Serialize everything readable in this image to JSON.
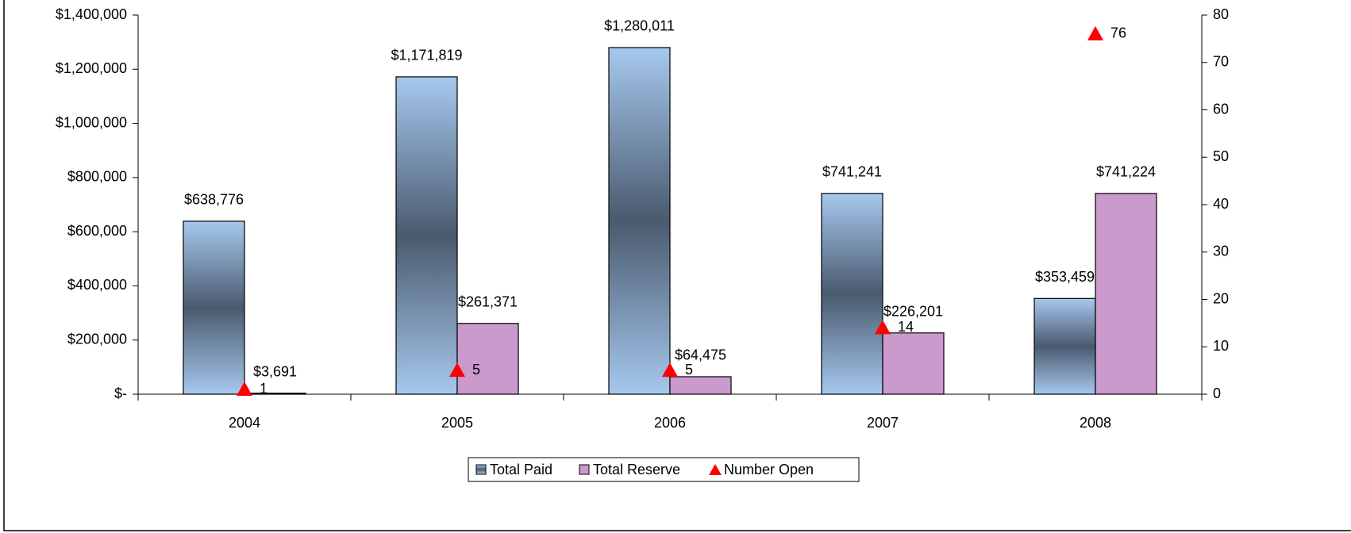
{
  "chart_data": {
    "type": "bar",
    "categories": [
      "2004",
      "2005",
      "2006",
      "2007",
      "2008"
    ],
    "series": [
      {
        "name": "Total Paid",
        "color": "#a6c8ee",
        "values": [
          638776,
          1171819,
          1280011,
          741241,
          353459
        ],
        "value_labels": [
          "$638,776",
          "$1,171,819",
          "$1,280,011",
          "$741,241",
          "$353,459"
        ]
      },
      {
        "name": "Total Reserve",
        "color": "#cc99cc",
        "values": [
          3691,
          261371,
          64475,
          226201,
          741224
        ],
        "value_labels": [
          "$3,691",
          "$261,371",
          "$64,475",
          "$226,201",
          "$741,224"
        ]
      },
      {
        "name": "Number Open",
        "color": "#ff0000",
        "type": "scatter",
        "axis": "y2",
        "values": [
          1,
          5,
          5,
          14,
          76
        ]
      }
    ],
    "ylim": [
      0,
      1400000
    ],
    "yticks": [
      {
        "value": 0,
        "label": "$-"
      },
      {
        "value": 200000,
        "label": "$200,000"
      },
      {
        "value": 400000,
        "label": "$400,000"
      },
      {
        "value": 600000,
        "label": "$600,000"
      },
      {
        "value": 800000,
        "label": "$800,000"
      },
      {
        "value": 1000000,
        "label": "$1,000,000"
      },
      {
        "value": 1200000,
        "label": "$1,200,000"
      },
      {
        "value": 1400000,
        "label": "$1,400,000"
      }
    ],
    "y2lim": [
      0,
      80
    ],
    "y2ticks": [
      0,
      10,
      20,
      30,
      40,
      50,
      60,
      70,
      80
    ],
    "legend": "bottom"
  }
}
